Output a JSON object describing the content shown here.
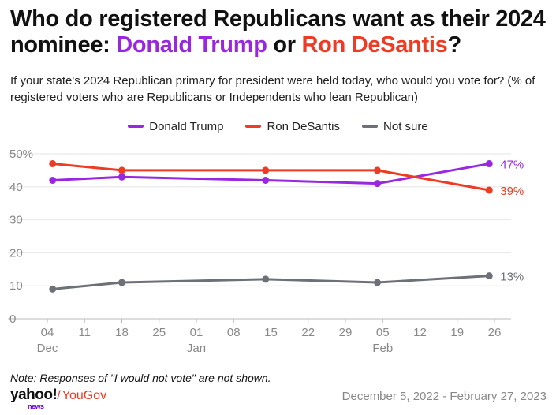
{
  "title": {
    "prefix": "Who do registered Republicans want as their 2024 nominee: ",
    "trump": "Donald Trump",
    "middle": " or ",
    "desantis": "Ron DeSantis",
    "suffix": "?"
  },
  "subtitle": "If your state's 2024 Republican primary for president were held today, who would you vote for? (% of registered voters who are Republicans or Independents who lean Republican)",
  "note": "Note: Responses of \"I would not vote\" are not shown.",
  "brand": {
    "yahoo": "yahoo!",
    "news": "news",
    "separator": "/",
    "yougov": "YouGov"
  },
  "date_range": "December 5, 2022 - February 27, 2023",
  "chart_data": {
    "type": "line",
    "title": "Who do registered Republicans want as their 2024 nominee: Donald Trump or Ron DeSantis?",
    "xlabel": "",
    "ylabel": "",
    "x_axis": {
      "domain_days": [
        0,
        85
      ],
      "ticks": [
        {
          "day": 0,
          "label": "04",
          "month": "Dec"
        },
        {
          "day": 14,
          "label": "11"
        },
        {
          "day": 28,
          "label": "18"
        },
        {
          "day": 42,
          "label": "25"
        },
        {
          "day": 56,
          "label": "01",
          "month": "Jan"
        },
        {
          "day": 70,
          "label": "08"
        },
        {
          "day": 84,
          "label": "15"
        },
        {
          "day": 98,
          "label": "22"
        },
        {
          "day": 112,
          "label": "29"
        },
        {
          "day": 126,
          "label": "05",
          "month": "Feb"
        },
        {
          "day": 140,
          "label": "12"
        },
        {
          "day": 154,
          "label": "19"
        },
        {
          "day": 168,
          "label": "26"
        }
      ],
      "note": "tick 'day' values are half-day units from Dec 4, 2022"
    },
    "ylim": [
      0,
      50
    ],
    "y_ticks": [
      {
        "value": 0,
        "label": "0"
      },
      {
        "value": 10,
        "label": "10"
      },
      {
        "value": 20,
        "label": "20"
      },
      {
        "value": 30,
        "label": "30"
      },
      {
        "value": 40,
        "label": "40"
      },
      {
        "value": 50,
        "label": "50%"
      }
    ],
    "grid": true,
    "legend": "top-center",
    "series": [
      {
        "name": "Donald Trump",
        "color": "#9a27e0",
        "x_halfdays": [
          2,
          28,
          82,
          124,
          166
        ],
        "values": [
          42,
          43,
          42,
          41,
          47
        ],
        "end_label": "47%"
      },
      {
        "name": "Ron DeSantis",
        "color": "#ee3b23",
        "x_halfdays": [
          2,
          28,
          82,
          124,
          166
        ],
        "values": [
          47,
          45,
          45,
          45,
          39
        ],
        "end_label": "39%"
      },
      {
        "name": "Not sure",
        "color": "#6e7077",
        "x_halfdays": [
          2,
          28,
          82,
          124,
          166
        ],
        "values": [
          9,
          11,
          12,
          11,
          13
        ],
        "end_label": "13%"
      }
    ]
  }
}
